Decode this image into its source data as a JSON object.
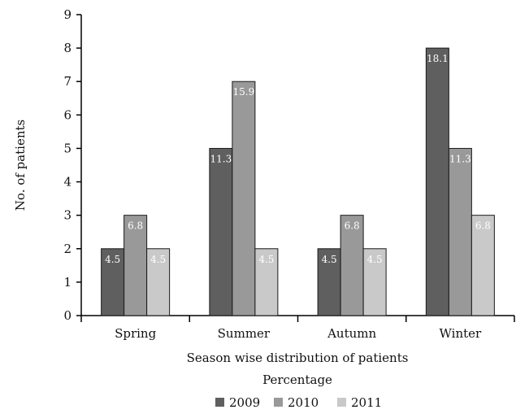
{
  "chart_data": {
    "type": "bar",
    "categories": [
      "Spring",
      "Summer",
      "Autumn",
      "Winter"
    ],
    "series": [
      {
        "name": "2009",
        "values": [
          2,
          5,
          2,
          8
        ],
        "labels": [
          "4.5",
          "11.3",
          "4.5",
          "18.1"
        ],
        "color": "#5f5f5f"
      },
      {
        "name": "2010",
        "values": [
          3,
          7,
          3,
          5
        ],
        "labels": [
          "6.8",
          "15.9",
          "6.8",
          "11.3"
        ],
        "color": "#999999"
      },
      {
        "name": "2011",
        "values": [
          2,
          2,
          2,
          3
        ],
        "labels": [
          "4.5",
          "4.5",
          "4.5",
          "6.8"
        ],
        "color": "#c9c9c9"
      }
    ],
    "title": "",
    "xlabel": "Season wise distribution of patients",
    "xlabel2": "Percentage",
    "ylabel": "No. of patients",
    "ylim": [
      0,
      9
    ],
    "yticks": [
      "0",
      "1",
      "2",
      "3",
      "4",
      "5",
      "6",
      "7",
      "8",
      "9"
    ],
    "grid": false,
    "legend_position": "bottom"
  }
}
